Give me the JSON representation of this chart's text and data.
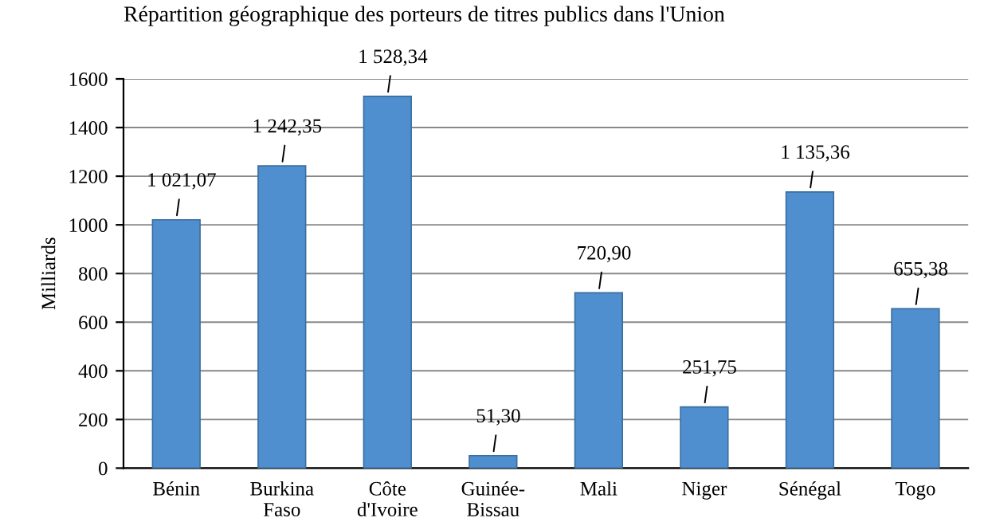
{
  "chart_data": {
    "type": "bar",
    "title": "Répartition géographique des porteurs de titres publics dans l'Union",
    "ylabel": "Milliards",
    "categories": [
      "Bénin",
      "Burkina\nFaso",
      "Côte\nd'Ivoire",
      "Guinée-\nBissau",
      "Mali",
      "Niger",
      "Sénégal",
      "Togo"
    ],
    "values": [
      1021.07,
      1242.35,
      1528.34,
      51.3,
      720.9,
      251.75,
      1135.36,
      655.38
    ],
    "value_labels": [
      "1 021,07",
      "1 242,35",
      "1 528,34",
      "51,30",
      "720,90",
      "251,75",
      "1 135,36",
      "655,38"
    ],
    "color": "#4f8fd0",
    "ylim": [
      0,
      1600
    ],
    "yticks": [
      0,
      200,
      400,
      600,
      800,
      1000,
      1200,
      1400,
      1600
    ],
    "grid": "y"
  }
}
